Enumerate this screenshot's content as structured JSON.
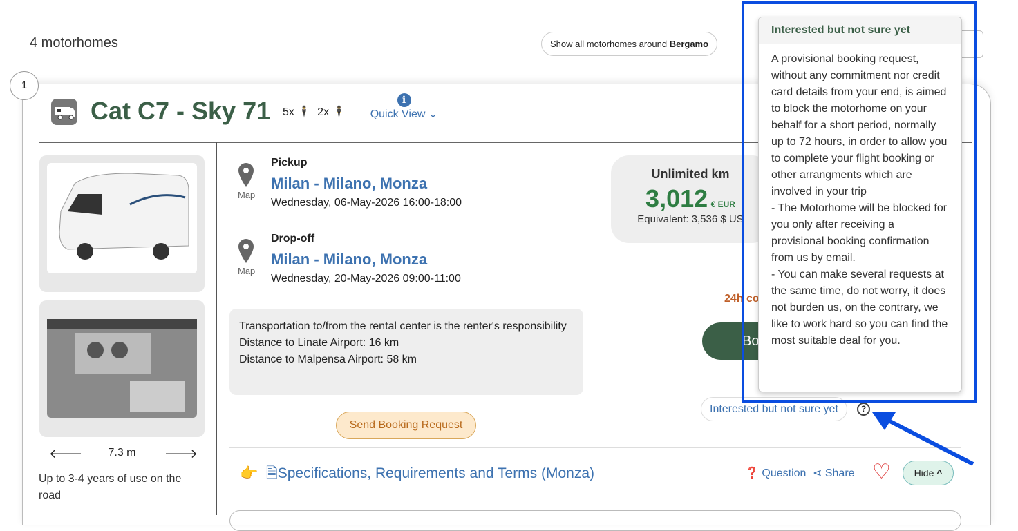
{
  "results": {
    "count_label": "4 motorhomes",
    "around_prefix": "Show all motorhomes around ",
    "around_city": "Bergamo"
  },
  "listing": {
    "index": "1",
    "name": "Cat C7 - Sky 71",
    "adults": "5x",
    "children": "2x",
    "quick_view": "Quick View",
    "length": "7.3 m",
    "usage_note": "Up to 3-4 years of use on the road",
    "pickup": {
      "label": "Pickup",
      "location": "Milan - Milano, Monza",
      "datetime": "Wednesday, 06-May-2026 16:00-18:00",
      "map": "Map"
    },
    "dropoff": {
      "label": "Drop-off",
      "location": "Milan - Milano, Monza",
      "datetime": "Wednesday, 20-May-2026 09:00-11:00",
      "map": "Map"
    },
    "info_lines": [
      "Transportation to/from the rental center is the renter's responsibility",
      "Distance to Linate Airport: 16 km",
      "Distance to Malpensa Airport: 58 km"
    ],
    "send_request": "Send Booking Request",
    "price": {
      "km": "Unlimited km",
      "amount": "3,012",
      "currency": "€ EUR",
      "equivalent": "Equivalent: 3,536 $ US"
    },
    "cancel_note": "24h co",
    "book_label": "Bo",
    "not_sure": "Interested but not sure yet",
    "specs": "Specifications, Requirements and Terms (Monza)",
    "question": "Question",
    "share": "Share",
    "hide": "Hide"
  },
  "tooltip": {
    "title": "Interested but not sure yet",
    "body": "A provisional booking request, without any commitment nor credit card details from your end, is aimed to block the motorhome on your behalf for a short period, normally up to 72 hours, in order to allow you to complete your flight booking or other arrangments which are involved in your trip\n- The Motorhome will be blocked for you only after receiving a provisional booking confirmation from us by email.\n- You can make several requests at the same time, do not worry, it does not burden us, on the contrary, we like to work hard so you can find the most suitable deal for you."
  },
  "colors": {
    "brand_green": "#3b5f47",
    "link_blue": "#3d72b0",
    "highlight": "#0a4de0"
  }
}
